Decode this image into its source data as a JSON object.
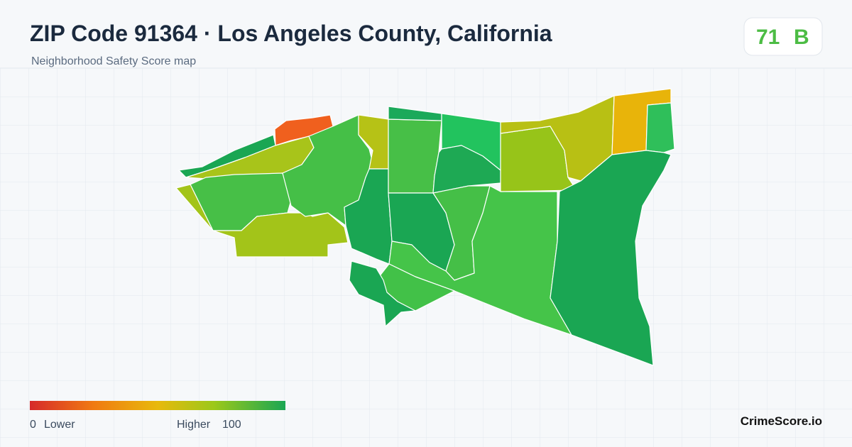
{
  "header": {
    "title": "ZIP Code 91364 · Los Angeles County, California",
    "subtitle": "Neighborhood Safety Score map"
  },
  "score": {
    "value": "71",
    "grade": "B"
  },
  "legend": {
    "min": "0",
    "min_label": "Lower",
    "max_label": "Higher",
    "max": "100"
  },
  "brand": "CrimeScore.io"
}
